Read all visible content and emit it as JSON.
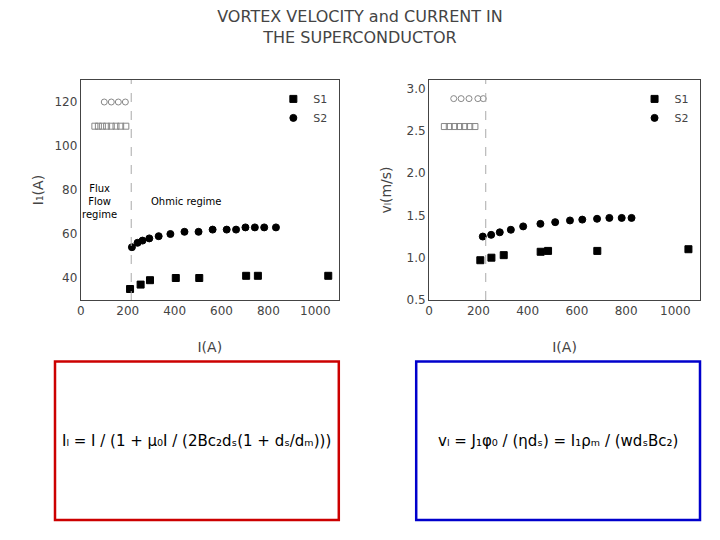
{
  "title": "VORTEX VELOCITY and CURRENT IN\nTHE SUPERCONDUCTOR",
  "chart_data": [
    {
      "type": "scatter",
      "xlabel": "I(A)",
      "ylabel": "I₁(A)",
      "xlim": [
        0,
        1100
      ],
      "ylim": [
        30,
        130
      ],
      "xticks": [
        0,
        200,
        400,
        600,
        800,
        1000
      ],
      "yticks": [
        40,
        60,
        80,
        100,
        120
      ],
      "grid": false,
      "legend": "upper right",
      "vline_x": 215,
      "annotations": [
        {
          "text": "Flux\nFlow\nregime",
          "x": 80,
          "y": 75,
          "anchor": "center"
        },
        {
          "text": "Ohmic regime",
          "x": 290,
          "y": 75,
          "anchor": "left"
        }
      ],
      "series": [
        {
          "color": "#888888",
          "marker": "circle-open",
          "x": [
            100,
            130,
            160,
            190
          ],
          "values": [
            120,
            120,
            120,
            120
          ]
        },
        {
          "color": "#888888",
          "marker": "square-open",
          "x": [
            60,
            75,
            92,
            110,
            130,
            150,
            170,
            192
          ],
          "values": [
            109,
            109,
            109,
            109,
            109,
            109,
            109,
            109
          ]
        },
        {
          "name": "S1",
          "color": "#000000",
          "marker": "square",
          "x": [
            210,
            255,
            295,
            405,
            505,
            705,
            755,
            1055
          ],
          "values": [
            35,
            37,
            39,
            40,
            40,
            41,
            41,
            41
          ]
        },
        {
          "name": "S2",
          "color": "#000000",
          "marker": "circle",
          "x": [
            218,
            242,
            263,
            292,
            332,
            382,
            442,
            502,
            562,
            622,
            662,
            702,
            742,
            782,
            832
          ],
          "values": [
            54,
            56,
            57,
            58,
            59,
            60,
            61,
            61,
            62,
            62,
            62,
            63,
            63,
            63,
            63
          ]
        }
      ]
    },
    {
      "type": "scatter",
      "xlabel": "I(A)",
      "ylabel": "vₗ(m/s)",
      "xlim": [
        0,
        1100
      ],
      "ylim": [
        0.5,
        3.1
      ],
      "xticks": [
        0,
        200,
        400,
        600,
        800,
        1000
      ],
      "yticks": [
        0.5,
        {
          "value": 1,
          "label": "1.0"
        },
        1.5,
        {
          "value": 2,
          "label": "2.0"
        },
        2.5,
        {
          "value": 3,
          "label": "3.0"
        }
      ],
      "grid": false,
      "legend": "upper right",
      "vline_x": 230,
      "series": [
        {
          "color": "#888888",
          "marker": "circle-open",
          "x": [
            100,
            130,
            162,
            198,
            220
          ],
          "values": [
            2.88,
            2.88,
            2.88,
            2.88,
            2.88
          ]
        },
        {
          "color": "#888888",
          "marker": "square-open",
          "x": [
            62,
            82,
            103,
            124,
            144,
            165,
            186
          ],
          "values": [
            2.55,
            2.55,
            2.55,
            2.55,
            2.55,
            2.55,
            2.55
          ]
        },
        {
          "name": "S1",
          "color": "#000000",
          "marker": "square",
          "x": [
            208,
            253,
            303,
            453,
            483,
            683,
            1053
          ],
          "values": [
            0.97,
            1.0,
            1.03,
            1.07,
            1.08,
            1.08,
            1.1
          ]
        },
        {
          "name": "S2",
          "color": "#000000",
          "marker": "circle",
          "x": [
            218,
            252,
            287,
            332,
            382,
            452,
            512,
            572,
            622,
            682,
            732,
            782,
            822
          ],
          "values": [
            1.25,
            1.27,
            1.3,
            1.33,
            1.37,
            1.4,
            1.42,
            1.44,
            1.45,
            1.46,
            1.47,
            1.47,
            1.47
          ]
        }
      ]
    }
  ],
  "formulas": [
    {
      "text": "Iₗ = I / (1 + μ₀I / (2Bc₂dₛ(1 + dₛ/dₘ)))",
      "color": "#CC0000"
    },
    {
      "text": "vₗ = J₁φ₀ / (ηdₛ) = I₁ρₘ / (wdₛBc₂)",
      "color": "#0000CC"
    }
  ]
}
